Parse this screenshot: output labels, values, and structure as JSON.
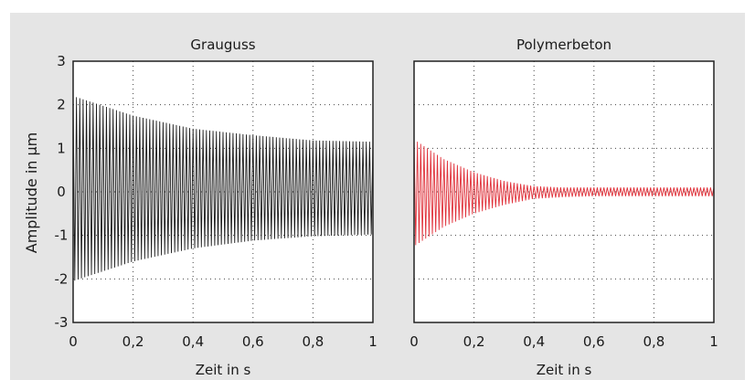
{
  "colors": {
    "panel_background": "#e5e5e5",
    "plot_background": "#ffffff",
    "grid": "#444444",
    "series_left": "#1a1a1a",
    "series_right": "#e0313a"
  },
  "shared_ylabel": "Amplitude in µm",
  "chart_data": [
    {
      "type": "line",
      "title": "Grauguss",
      "xlabel": "Zeit in s",
      "ylabel": "Amplitude in µm",
      "xlim": [
        0,
        1
      ],
      "ylim": [
        -3,
        3
      ],
      "xticks": [
        0,
        0.2,
        0.4,
        0.6,
        0.8,
        1
      ],
      "xtick_labels": [
        "0",
        "0,2",
        "0,4",
        "0,6",
        "0,8",
        "1"
      ],
      "yticks": [
        3,
        2,
        1,
        0,
        -1,
        -2,
        -3
      ],
      "ytick_labels": [
        "3",
        "2",
        "1",
        "0",
        "-1",
        "-2",
        "-3"
      ],
      "grid": true,
      "series": [
        {
          "kind": "damped_oscillation",
          "color": "#1a1a1a",
          "envelope_top": {
            "x": [
              0,
              0.2,
              0.4,
              0.6,
              0.8,
              1
            ],
            "y": [
              2.2,
              1.75,
              1.45,
              1.3,
              1.18,
              1.15
            ]
          },
          "envelope_bottom": {
            "x": [
              0,
              0.2,
              0.4,
              0.6,
              0.8,
              1
            ],
            "y": [
              -2.05,
              -1.6,
              -1.3,
              -1.12,
              -1.02,
              -0.98
            ]
          },
          "cycles": 90
        }
      ]
    },
    {
      "type": "line",
      "title": "Polymerbeton",
      "xlabel": "Zeit in s",
      "xlim": [
        0,
        1
      ],
      "ylim": [
        -3,
        3
      ],
      "xticks": [
        0,
        0.2,
        0.4,
        0.6,
        0.8,
        1
      ],
      "xtick_labels": [
        "0",
        "0,2",
        "0,4",
        "0,6",
        "0,8",
        "1"
      ],
      "grid": true,
      "series": [
        {
          "kind": "damped_oscillation",
          "color": "#e0313a",
          "envelope_top": {
            "x": [
              0,
              0.1,
              0.2,
              0.3,
              0.4,
              0.5,
              0.6,
              0.8,
              1
            ],
            "y": [
              1.2,
              0.75,
              0.45,
              0.25,
              0.13,
              0.1,
              0.1,
              0.1,
              0.1
            ]
          },
          "envelope_bottom": {
            "x": [
              0,
              0.1,
              0.2,
              0.3,
              0.4,
              0.5,
              0.6,
              0.8,
              1
            ],
            "y": [
              -1.25,
              -0.8,
              -0.5,
              -0.3,
              -0.16,
              -0.12,
              -0.1,
              -0.1,
              -0.1
            ]
          },
          "cycles": 90
        }
      ]
    }
  ]
}
